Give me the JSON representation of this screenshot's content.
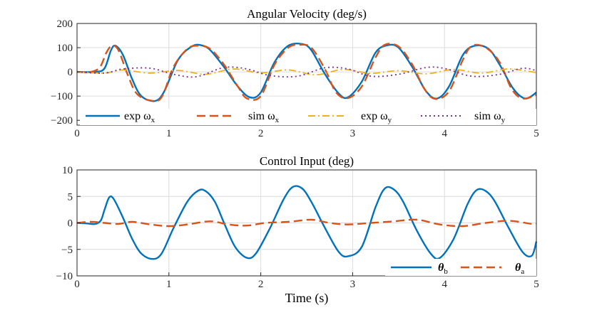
{
  "chart_data": [
    {
      "type": "line",
      "title": "Angular Velocity (deg/s)",
      "xlabel": "",
      "ylabel": "",
      "xlim": [
        0,
        5
      ],
      "ylim": [
        -220,
        200
      ],
      "xticks": [
        0,
        1,
        2,
        3,
        4,
        5
      ],
      "yticks": [
        200,
        100,
        0,
        -100,
        -200
      ],
      "xtick_labels": [
        "0",
        "1",
        "2",
        "3",
        "4",
        "5"
      ],
      "ytick_labels": [
        "200",
        "100",
        "0",
        "−100",
        "−200"
      ],
      "grid": true,
      "legend_position": "bottom, horizontal",
      "series": [
        {
          "name": "exp ω_x",
          "label_text": "exp ω",
          "label_sub": "x",
          "color": "#0072bd",
          "style": "solid",
          "x": [
            0,
            0.2,
            0.3,
            0.37,
            0.42,
            0.5,
            0.6,
            0.7,
            0.85,
            0.95,
            1.1,
            1.25,
            1.35,
            1.45,
            1.6,
            1.75,
            1.88,
            2.0,
            2.15,
            2.3,
            2.45,
            2.55,
            2.7,
            2.85,
            2.95,
            3.1,
            3.25,
            3.38,
            3.5,
            3.65,
            3.8,
            3.92,
            4.05,
            4.2,
            4.33,
            4.48,
            4.6,
            4.75,
            4.88,
            5.0
          ],
          "y": [
            0,
            0,
            15,
            90,
            108,
            70,
            -30,
            -100,
            -120,
            -80,
            50,
            105,
            110,
            90,
            20,
            -60,
            -105,
            -85,
            40,
            108,
            115,
            90,
            -10,
            -90,
            -105,
            -40,
            80,
            110,
            100,
            20,
            -80,
            -110,
            -60,
            70,
            108,
            95,
            30,
            -70,
            -110,
            -85
          ]
        },
        {
          "name": "sim ω_x",
          "label_text": "sim ω",
          "label_sub": "x",
          "color": "#d95319",
          "style": "dashed",
          "x": [
            0,
            0.15,
            0.25,
            0.32,
            0.38,
            0.45,
            0.55,
            0.65,
            0.8,
            0.92,
            1.05,
            1.2,
            1.32,
            1.45,
            1.6,
            1.75,
            1.85,
            2.0,
            2.15,
            2.3,
            2.42,
            2.55,
            2.7,
            2.82,
            2.95,
            3.1,
            3.25,
            3.35,
            3.5,
            3.65,
            3.78,
            3.9,
            4.05,
            4.2,
            4.3,
            4.45,
            4.6,
            4.73,
            4.85,
            5.0
          ],
          "y": [
            0,
            0,
            20,
            80,
            108,
            90,
            -10,
            -90,
            -118,
            -105,
            20,
            95,
            108,
            95,
            30,
            -60,
            -110,
            -100,
            30,
            100,
            112,
            100,
            10,
            -85,
            -108,
            -60,
            60,
            112,
            105,
            30,
            -70,
            -112,
            -80,
            50,
            108,
            100,
            40,
            -70,
            -110,
            -95
          ]
        },
        {
          "name": "exp ω_y",
          "label_text": "exp ω",
          "label_sub": "y",
          "color": "#edb120",
          "style": "dashdot",
          "x": [
            0,
            0.3,
            0.5,
            0.8,
            1.1,
            1.4,
            1.7,
            2.0,
            2.3,
            2.6,
            2.9,
            3.2,
            3.5,
            3.8,
            4.1,
            4.4,
            4.7,
            5.0
          ],
          "y": [
            0,
            -5,
            8,
            -5,
            6,
            -10,
            12,
            -4,
            8,
            -12,
            10,
            -6,
            5,
            -8,
            10,
            -5,
            12,
            -3
          ]
        },
        {
          "name": "sim ω_y",
          "label_text": "sim ω",
          "label_sub": "y",
          "color": "#7e2f8e",
          "style": "dotted",
          "x": [
            0,
            0.3,
            0.5,
            0.8,
            1.05,
            1.3,
            1.6,
            1.85,
            2.1,
            2.4,
            2.7,
            2.95,
            3.2,
            3.5,
            3.8,
            4.0,
            4.3,
            4.6,
            4.85,
            5.0
          ],
          "y": [
            0,
            -5,
            12,
            15,
            -10,
            -20,
            18,
            12,
            -15,
            -18,
            17,
            12,
            -18,
            -10,
            18,
            14,
            -18,
            -10,
            15,
            5
          ]
        }
      ]
    },
    {
      "type": "line",
      "title": "Control Input (deg)",
      "xlabel": "Time (s)",
      "ylabel": "",
      "xlim": [
        0,
        5
      ],
      "ylim": [
        -10,
        10
      ],
      "xticks": [
        0,
        1,
        2,
        3,
        4,
        5
      ],
      "yticks": [
        10,
        5,
        0,
        -5,
        -10
      ],
      "xtick_labels": [
        "0",
        "1",
        "2",
        "3",
        "4",
        "5"
      ],
      "ytick_labels": [
        "10",
        "5",
        "0",
        "−5",
        "−10"
      ],
      "grid": true,
      "legend_position": "bottom-right, horizontal",
      "series": [
        {
          "name": "θ_b",
          "label_text": "θ",
          "label_sub": "b",
          "color": "#0072bd",
          "style": "solid",
          "x": [
            0,
            0.1,
            0.2,
            0.26,
            0.3,
            0.35,
            0.4,
            0.5,
            0.6,
            0.7,
            0.82,
            0.92,
            1.05,
            1.2,
            1.32,
            1.4,
            1.5,
            1.6,
            1.72,
            1.85,
            1.95,
            2.1,
            2.25,
            2.35,
            2.45,
            2.55,
            2.7,
            2.85,
            2.95,
            3.1,
            3.25,
            3.35,
            3.45,
            3.55,
            3.7,
            3.85,
            3.95,
            4.1,
            4.25,
            4.35,
            4.45,
            4.55,
            4.7,
            4.85,
            4.95,
            5.0
          ],
          "y": [
            0,
            -0.1,
            -0.2,
            0.5,
            2.5,
            4.8,
            4.5,
            1,
            -3,
            -5.8,
            -6.8,
            -5.8,
            -1,
            4,
            6.1,
            6,
            4,
            0,
            -4.5,
            -6.6,
            -5.7,
            -1,
            4.5,
            6.8,
            6.5,
            4,
            -1,
            -5.5,
            -6.3,
            -4.5,
            3,
            6.5,
            6.3,
            4,
            -1.5,
            -5.8,
            -6.6,
            -3,
            3.5,
            6.2,
            6,
            4,
            -1,
            -5.5,
            -6.2,
            -3.5
          ]
        },
        {
          "name": "θ_a",
          "label_text": "θ",
          "label_sub": "a",
          "color": "#d95319",
          "style": "dashed",
          "x": [
            0,
            0.15,
            0.3,
            0.45,
            0.6,
            0.8,
            1.0,
            1.2,
            1.45,
            1.65,
            1.85,
            2.05,
            2.3,
            2.55,
            2.75,
            2.95,
            3.2,
            3.45,
            3.7,
            3.95,
            4.2,
            4.45,
            4.7,
            4.95,
            5.0
          ],
          "y": [
            0,
            0.2,
            0,
            -0.2,
            0.2,
            -0.3,
            -0.6,
            -0.3,
            0.3,
            -0.3,
            -0.5,
            0,
            0.2,
            0.6,
            0,
            -0.3,
            0,
            0.3,
            0.6,
            -0.3,
            -0.6,
            0,
            0.4,
            -0.2,
            -0.2
          ]
        }
      ]
    }
  ]
}
